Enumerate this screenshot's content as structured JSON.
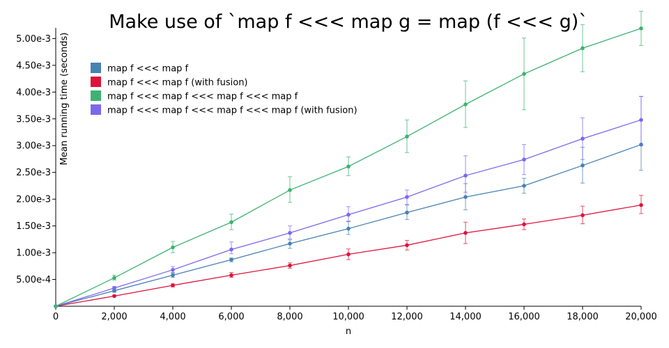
{
  "chart_data": {
    "type": "line",
    "title": "Make use of `map f <<< map g = map (f <<< g)`",
    "xlabel": "n",
    "ylabel": "Mean running time (seconds)",
    "xlim": [
      0,
      20000
    ],
    "ylim": [
      0,
      0.0052
    ],
    "x_ticks": [
      0,
      2000,
      4000,
      6000,
      8000,
      10000,
      12000,
      14000,
      16000,
      18000,
      20000
    ],
    "x_tick_labels": [
      "0",
      "2,000",
      "4,000",
      "6,000",
      "8,000",
      "10,000",
      "12,000",
      "14,000",
      "16,000",
      "18,000",
      "20,000"
    ],
    "y_ticks": [
      0.0005,
      0.001,
      0.0015,
      0.002,
      0.0025,
      0.003,
      0.0035,
      0.004,
      0.0045,
      0.005
    ],
    "y_tick_labels": [
      "5.00e-4",
      "1.00e-3",
      "1.50e-3",
      "2.00e-3",
      "2.50e-3",
      "3.00e-3",
      "3.50e-3",
      "4.00e-3",
      "4.50e-3",
      "5.00e-3"
    ],
    "grid": false,
    "legend_position": "top-left",
    "x": [
      0,
      2000,
      4000,
      6000,
      8000,
      10000,
      12000,
      14000,
      16000,
      18000,
      20000
    ],
    "series": [
      {
        "name": "map f <<< map f",
        "color": "#4682b4",
        "values": [
          0.0,
          0.00029,
          0.00058,
          0.00087,
          0.00117,
          0.00145,
          0.00175,
          0.00204,
          0.00225,
          0.00263,
          0.00302
        ],
        "err_low": [
          0.0,
          0.00026,
          0.00054,
          0.00083,
          0.00108,
          0.00134,
          0.00162,
          0.0018,
          0.00211,
          0.0023,
          0.00254
        ],
        "err_high": [
          0.0,
          0.00034,
          0.00062,
          0.0009,
          0.00124,
          0.00159,
          0.00189,
          0.00229,
          0.00239,
          0.00297,
          0.00392
        ]
      },
      {
        "name": "map f <<< map f (with fusion)",
        "color": "#dc143c",
        "values": [
          0.0,
          0.00019,
          0.00039,
          0.00058,
          0.00076,
          0.00097,
          0.00114,
          0.00137,
          0.00153,
          0.0017,
          0.00189
        ],
        "err_low": [
          0.0,
          0.00018,
          0.00036,
          0.00054,
          0.00071,
          0.00087,
          0.00105,
          0.00117,
          0.00143,
          0.00154,
          0.00173
        ],
        "err_high": [
          0.0,
          0.00021,
          0.00042,
          0.00063,
          0.00081,
          0.00107,
          0.00123,
          0.00157,
          0.00163,
          0.00187,
          0.00207
        ]
      },
      {
        "name": "map f <<< map f <<< map f <<< map f",
        "color": "#3cb371",
        "values": [
          0.0,
          0.00053,
          0.0011,
          0.00157,
          0.00217,
          0.00261,
          0.00317,
          0.00377,
          0.00434,
          0.00482,
          0.00519
        ],
        "err_low": [
          0.0,
          0.00049,
          0.001,
          0.00143,
          0.00194,
          0.00244,
          0.00287,
          0.00334,
          0.00367,
          0.00438,
          0.00487
        ],
        "err_high": [
          0.0,
          0.00058,
          0.00121,
          0.00172,
          0.00242,
          0.00279,
          0.00348,
          0.00421,
          0.00501,
          0.00526,
          0.00551
        ]
      },
      {
        "name": "map f <<< map f <<< map f <<< map f (with fusion)",
        "color": "#7b68ee",
        "values": [
          0.0,
          0.00034,
          0.00068,
          0.00106,
          0.00137,
          0.00171,
          0.00204,
          0.00244,
          0.00274,
          0.00313,
          0.00348
        ],
        "err_low": [
          0.0,
          0.00031,
          0.00063,
          0.00098,
          0.00126,
          0.00158,
          0.0019,
          0.00213,
          0.00246,
          0.00274,
          0.003
        ],
        "err_high": [
          0.0,
          0.00037,
          0.00074,
          0.0012,
          0.0015,
          0.00186,
          0.00217,
          0.00281,
          0.00302,
          0.00352,
          0.00392
        ]
      }
    ]
  }
}
